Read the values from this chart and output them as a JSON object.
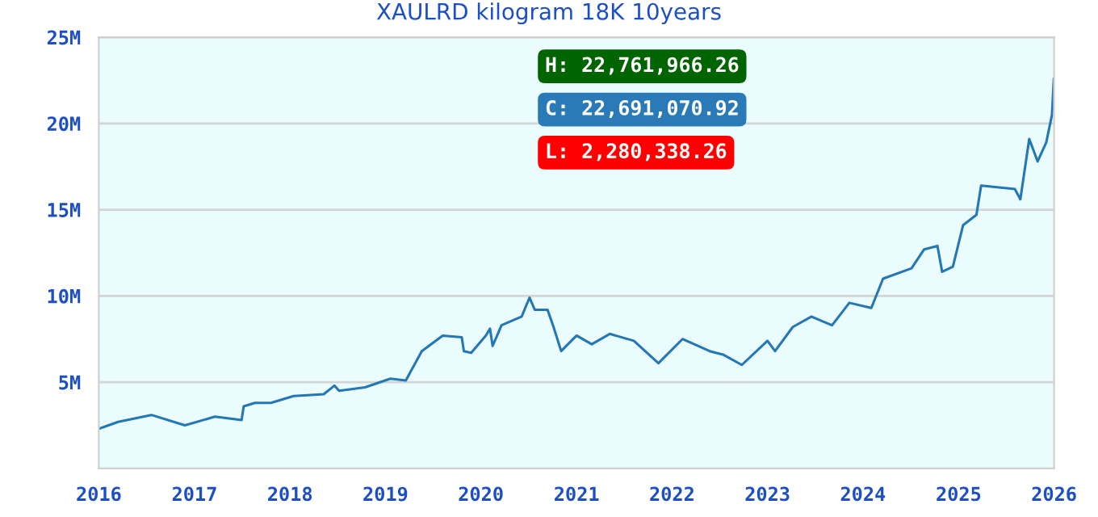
{
  "chart_data": {
    "type": "line",
    "title": "XAULRD kilogram 18K 10years",
    "x": [
      "2016-01-01",
      "2016-03-15",
      "2016-07-20",
      "2016-11-25",
      "2017-03-20",
      "2017-06-30",
      "2017-07-08",
      "2017-08-20",
      "2017-10-20",
      "2018-01-15",
      "2018-05-10",
      "2018-06-20",
      "2018-07-08",
      "2018-10-15",
      "2019-01-20",
      "2019-03-20",
      "2019-05-20",
      "2019-08-08",
      "2019-10-20",
      "2019-10-28",
      "2019-11-25",
      "2020-01-20",
      "2020-02-05",
      "2020-02-15",
      "2020-03-20",
      "2020-06-05",
      "2020-07-05",
      "2020-07-25",
      "2020-09-12",
      "2020-10-05",
      "2020-11-03",
      "2021-01-01",
      "2021-02-28",
      "2021-05-08",
      "2021-08-08",
      "2021-11-10",
      "2022-02-10",
      "2022-05-25",
      "2022-07-15",
      "2022-09-25",
      "2023-01-01",
      "2023-01-30",
      "2023-04-08",
      "2023-06-18",
      "2023-09-05",
      "2023-11-10",
      "2024-02-02",
      "2024-03-18",
      "2024-07-05",
      "2024-08-22",
      "2024-10-12",
      "2024-10-30",
      "2024-12-10",
      "2025-01-18",
      "2025-03-10",
      "2025-03-28",
      "2025-08-04",
      "2025-08-25",
      "2025-09-28",
      "2025-10-30",
      "2025-12-02",
      "2025-12-24",
      "2025-12-31"
    ],
    "series": [
      {
        "color": "#2277b4",
        "values": [
          2300000,
          2700000,
          3100000,
          2500000,
          3000000,
          2800000,
          3600000,
          3800000,
          3800000,
          4200000,
          4300000,
          4800000,
          4500000,
          4700000,
          5200000,
          5100000,
          6800000,
          7700000,
          7600000,
          6800000,
          6700000,
          7700000,
          8100000,
          7100000,
          8300000,
          8800000,
          9900000,
          9200000,
          9200000,
          8200000,
          6800000,
          7700000,
          7200000,
          7800000,
          7400000,
          6100000,
          7500000,
          6800000,
          6600000,
          6000000,
          7400000,
          6800000,
          8200000,
          8800000,
          8300000,
          9600000,
          9300000,
          11000000,
          11600000,
          12700000,
          12900000,
          11400000,
          11700000,
          14100000,
          14700000,
          16400000,
          16200000,
          15600000,
          19100000,
          17800000,
          18900000,
          20500000,
          22600000
        ]
      }
    ],
    "xlim": [
      "2016-01-01",
      "2026-01-01"
    ],
    "xticks": [
      "2016",
      "2017",
      "2018",
      "2019",
      "2020",
      "2021",
      "2022",
      "2023",
      "2024",
      "2025",
      "2026"
    ],
    "ylim": [
      0,
      25000000
    ],
    "yticks": [
      {
        "value": 5000000,
        "label": "5M"
      },
      {
        "value": 10000000,
        "label": "10M"
      },
      {
        "value": 15000000,
        "label": "15M"
      },
      {
        "value": 20000000,
        "label": "20M"
      },
      {
        "value": 25000000,
        "label": "25M"
      }
    ],
    "grid": "y",
    "legend": false,
    "marker": "none",
    "line_style": "solid",
    "annotations": [
      "H: 22,761,966.26",
      "C: 22,691,070.92",
      "L: 2,280,338.26"
    ]
  }
}
